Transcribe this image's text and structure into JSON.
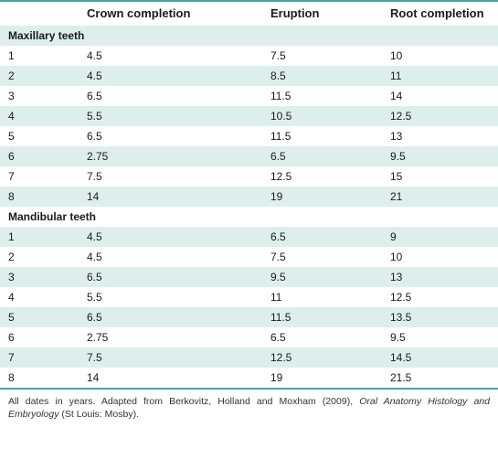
{
  "table": {
    "headers": [
      "",
      "Crown completion",
      "Eruption",
      "Root completion"
    ],
    "sections": [
      {
        "title": "Maxillary teeth",
        "rows": [
          [
            "1",
            "4.5",
            "7.5",
            "10"
          ],
          [
            "2",
            "4.5",
            "8.5",
            "11"
          ],
          [
            "3",
            "6.5",
            "11.5",
            "14"
          ],
          [
            "4",
            "5.5",
            "10.5",
            "12.5"
          ],
          [
            "5",
            "6.5",
            "11.5",
            "13"
          ],
          [
            "6",
            "2.75",
            "6.5",
            "9.5"
          ],
          [
            "7",
            "7.5",
            "12.5",
            "15"
          ],
          [
            "8",
            "14",
            "19",
            "21"
          ]
        ]
      },
      {
        "title": "Mandibular teeth",
        "rows": [
          [
            "1",
            "4.5",
            "6.5",
            "9"
          ],
          [
            "2",
            "4.5",
            "7.5",
            "10"
          ],
          [
            "3",
            "6.5",
            "9.5",
            "13"
          ],
          [
            "4",
            "5.5",
            "11",
            "12.5"
          ],
          [
            "5",
            "6.5",
            "11.5",
            "13.5"
          ],
          [
            "6",
            "2.75",
            "6.5",
            "9.5"
          ],
          [
            "7",
            "7.5",
            "12.5",
            "14.5"
          ],
          [
            "8",
            "14",
            "19",
            "21.5"
          ]
        ]
      }
    ]
  },
  "footnote": {
    "text_before": "All dates in years. Adapted from Berkovitz, Holland and Moxham (2009), ",
    "book_title": "Oral Anatomy Histology and Embryology",
    "text_after": " (St Louis: Mosby)."
  },
  "colors": {
    "rule": "#4aa39c",
    "shade": "#ddeeed"
  }
}
